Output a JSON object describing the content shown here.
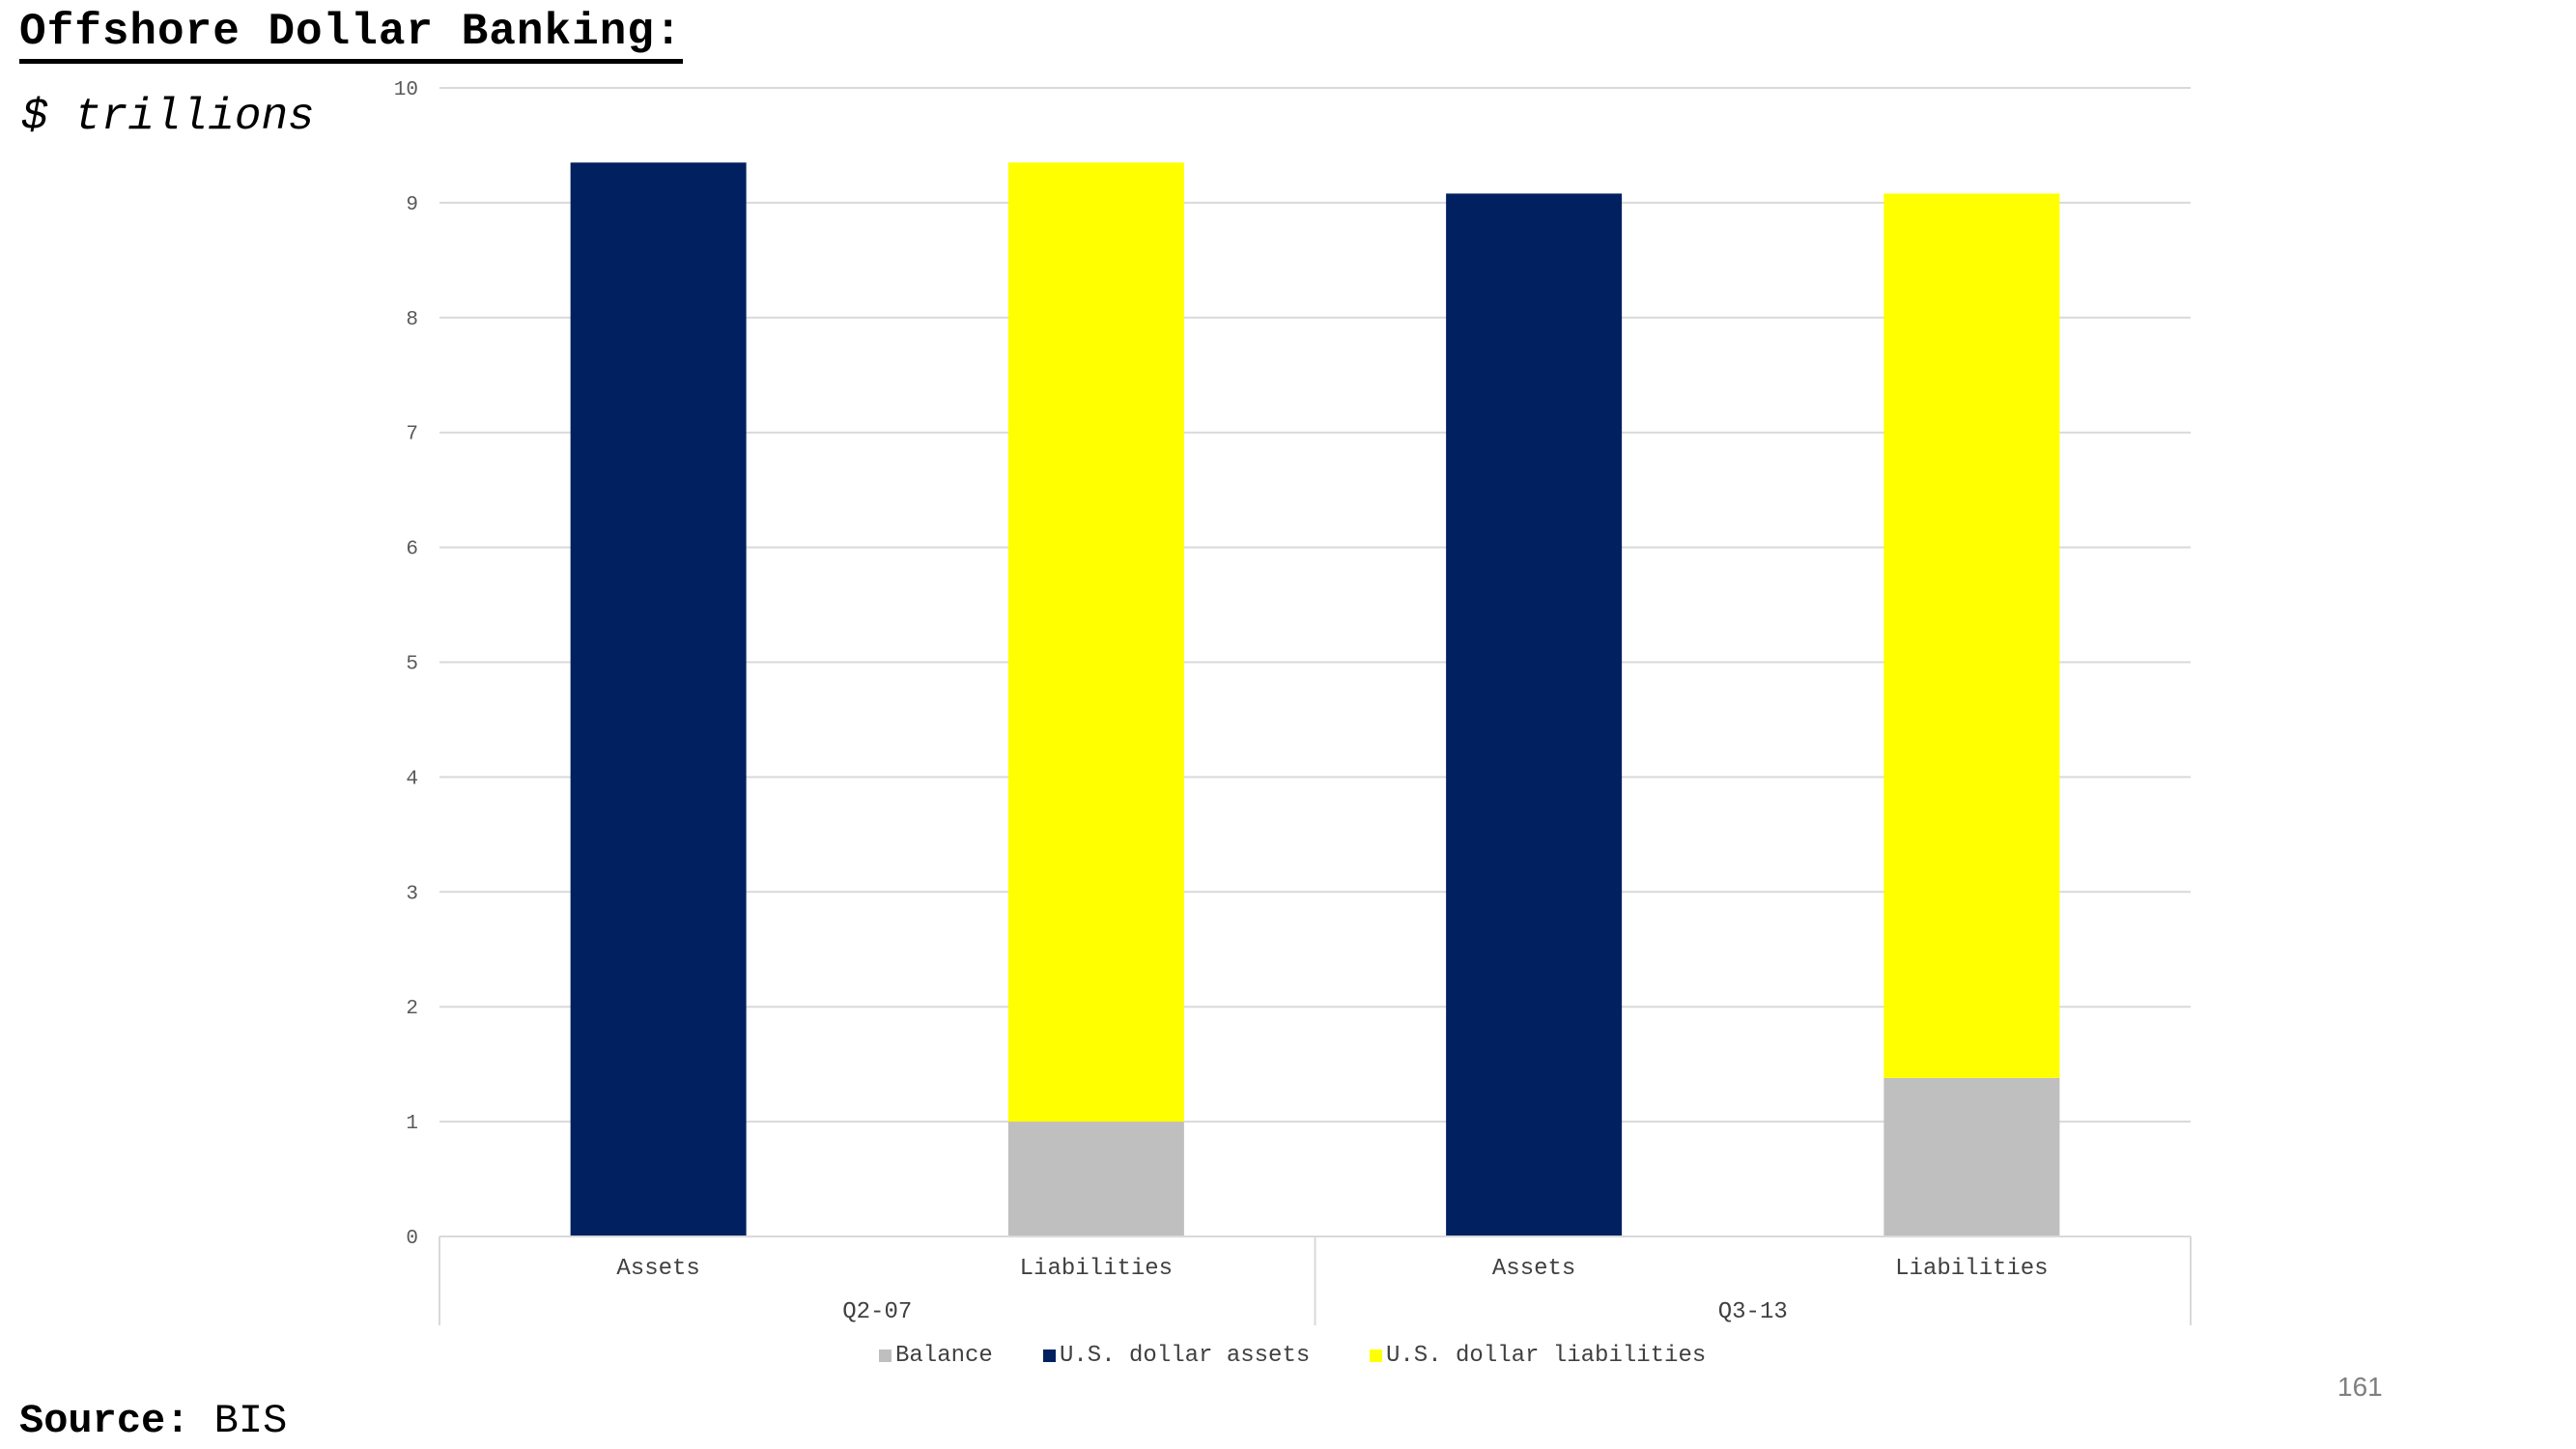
{
  "title": "Offshore Dollar Banking:",
  "subtitle": "$ trillions",
  "source": {
    "label": "Source:",
    "value": "BIS"
  },
  "page_number": "161",
  "chart_data": {
    "type": "bar",
    "stacked": true,
    "groups": [
      {
        "label": "Q2-07",
        "categories": [
          "Assets",
          "Liabilities"
        ]
      },
      {
        "label": "Q3-13",
        "categories": [
          "Assets",
          "Liabilities"
        ]
      }
    ],
    "categories": [
      "Assets",
      "Liabilities",
      "Assets",
      "Liabilities"
    ],
    "series": [
      {
        "name": "Balance",
        "color": "#bfbfbf",
        "values": [
          0,
          1.0,
          0,
          1.38
        ]
      },
      {
        "name": "U.S. dollar assets",
        "color": "#002060",
        "values": [
          9.35,
          0,
          9.08,
          0
        ]
      },
      {
        "name": "U.S. dollar liabilities",
        "color": "#ffff00",
        "values": [
          0,
          8.35,
          0,
          7.7
        ]
      }
    ],
    "ylim": [
      0,
      10
    ],
    "yticks": [
      "0",
      "1",
      "2",
      "3",
      "4",
      "5",
      "6",
      "7",
      "8",
      "9",
      "10"
    ],
    "grid": true,
    "legend_position": "bottom"
  }
}
